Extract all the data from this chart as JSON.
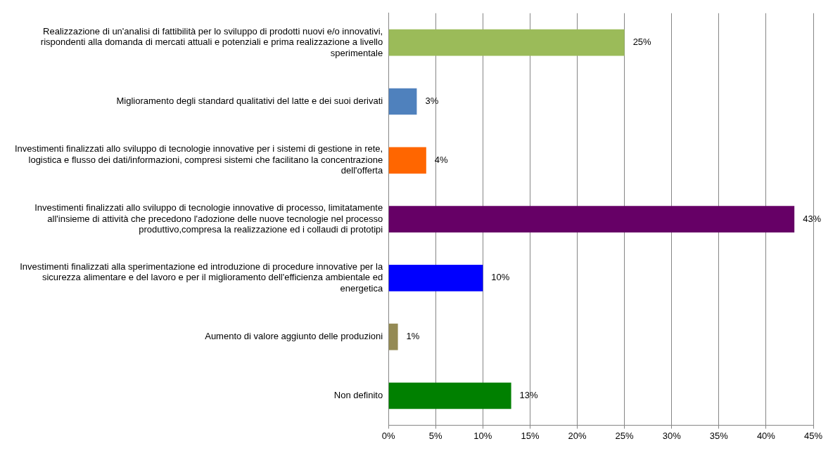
{
  "chart_data": {
    "type": "bar",
    "orientation": "horizontal",
    "categories": [
      "Realizzazione di un'analisi di fattibilità per lo sviluppo di prodotti nuovi e/o innovativi, rispondenti alla domanda di mercati attuali e potenziali e prima realizzazione a livello sperimentale",
      "Miglioramento degli standard qualitativi del latte e dei suoi derivati",
      "Investimenti finalizzati allo sviluppo di tecnologie innovative per i sistemi di gestione in rete, logistica e flusso dei dati/informazioni, compresi sistemi che facilitano la concentrazione dell'offerta",
      "Investimenti finalizzati allo sviluppo di tecnologie innovative di processo, limitatamente all'insieme di attività che precedono l'adozione delle nuove tecnologie nel processo produttivo,compresa la realizzazione ed i collaudi di prototipi",
      "Investimenti finalizzati alla sperimentazione ed introduzione di procedure innovative per la sicurezza alimentare e del lavoro e per il miglioramento dell'efficienza ambientale ed energetica",
      "Aumento di valore aggiunto delle produzioni",
      "Non definito"
    ],
    "values": [
      25,
      3,
      4,
      43,
      10,
      1,
      13
    ],
    "value_labels": [
      "25%",
      "3%",
      "4%",
      "43%",
      "10%",
      "1%",
      "13%"
    ],
    "colors": [
      "#9bbb59",
      "#4f81bd",
      "#ff6600",
      "#660066",
      "#0000ff",
      "#948a54",
      "#008000"
    ],
    "xlim": [
      0,
      45
    ],
    "xticks": [
      {
        "value": 0,
        "label": "0%"
      },
      {
        "value": 5,
        "label": "5%"
      },
      {
        "value": 10,
        "label": "10%"
      },
      {
        "value": 15,
        "label": "15%"
      },
      {
        "value": 20,
        "label": "20%"
      },
      {
        "value": 25,
        "label": "25%"
      },
      {
        "value": 30,
        "label": "30%"
      },
      {
        "value": 35,
        "label": "35%"
      },
      {
        "value": 40,
        "label": "40%"
      },
      {
        "value": 45,
        "label": "45%"
      }
    ],
    "grid": "x",
    "legend": false
  }
}
